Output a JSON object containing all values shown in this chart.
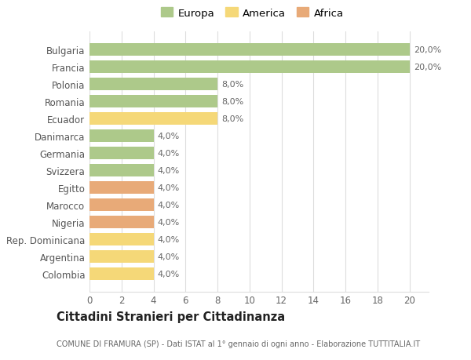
{
  "categories": [
    "Bulgaria",
    "Francia",
    "Polonia",
    "Romania",
    "Ecuador",
    "Danimarca",
    "Germania",
    "Svizzera",
    "Egitto",
    "Marocco",
    "Nigeria",
    "Rep. Dominicana",
    "Argentina",
    "Colombia"
  ],
  "values": [
    20,
    20,
    8,
    8,
    8,
    4,
    4,
    4,
    4,
    4,
    4,
    4,
    4,
    4
  ],
  "colors": [
    "#adc98a",
    "#adc98a",
    "#adc98a",
    "#adc98a",
    "#f5d878",
    "#adc98a",
    "#adc98a",
    "#adc98a",
    "#e8aa78",
    "#e8aa78",
    "#e8aa78",
    "#f5d878",
    "#f5d878",
    "#f5d878"
  ],
  "percentages": [
    "20,0%",
    "20,0%",
    "8,0%",
    "8,0%",
    "8,0%",
    "4,0%",
    "4,0%",
    "4,0%",
    "4,0%",
    "4,0%",
    "4,0%",
    "4,0%",
    "4,0%",
    "4,0%"
  ],
  "legend": [
    {
      "label": "Europa",
      "color": "#adc98a"
    },
    {
      "label": "America",
      "color": "#f5d878"
    },
    {
      "label": "Africa",
      "color": "#e8aa78"
    }
  ],
  "xlim": [
    0,
    20
  ],
  "xticks": [
    0,
    2,
    4,
    6,
    8,
    10,
    12,
    14,
    16,
    18,
    20
  ],
  "title": "Cittadini Stranieri per Cittadinanza",
  "subtitle": "COMUNE DI FRAMURA (SP) - Dati ISTAT al 1° gennaio di ogni anno - Elaborazione TUTTITALIA.IT",
  "background_color": "#ffffff",
  "grid_color": "#dddddd"
}
